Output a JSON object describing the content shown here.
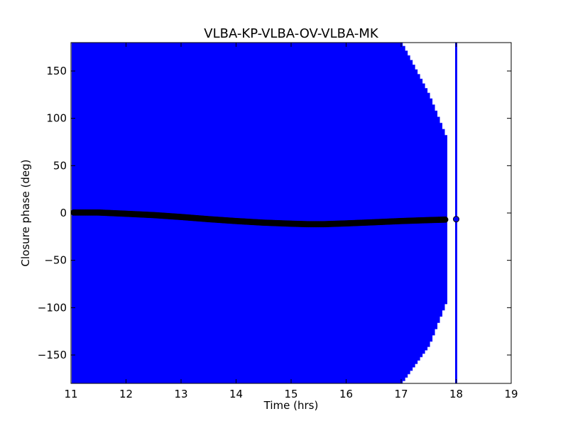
{
  "chart_data": {
    "type": "scatter",
    "title": "VLBA-KP-VLBA-OV-VLBA-MK",
    "xlabel": "Time (hrs)",
    "ylabel": "Closure phase (deg)",
    "xlim": [
      11,
      19
    ],
    "ylim": [
      -180,
      180
    ],
    "xticks": [
      11,
      12,
      13,
      14,
      15,
      16,
      17,
      18,
      19
    ],
    "yticks": [
      -150,
      -100,
      -50,
      0,
      50,
      100,
      150
    ],
    "grid": false,
    "legend": "none",
    "colors": {
      "errorbars": "#0000ff",
      "points": "#000000",
      "last_point": "#0000ff"
    },
    "series": [
      {
        "marker": "circle",
        "x": [
          11.05,
          11.5,
          12.0,
          12.5,
          13.0,
          13.5,
          14.0,
          14.5,
          15.0,
          15.3,
          15.6,
          16.0,
          16.5,
          17.0,
          17.5,
          17.8,
          18.0
        ],
        "y": [
          0.5,
          0.5,
          -0.8,
          -2.2,
          -4.2,
          -6.5,
          -8.5,
          -10.2,
          -11.3,
          -11.8,
          -11.8,
          -11.0,
          -9.8,
          -8.5,
          -7.5,
          -7.0,
          -6.5
        ],
        "error_upper_end": [
          180,
          180,
          180,
          180,
          180,
          180,
          180,
          180,
          180,
          180,
          180,
          180,
          180,
          180,
          125,
          82,
          180
        ],
        "error_lower_end": [
          -180,
          -180,
          -180,
          -180,
          -180,
          -180,
          -180,
          -180,
          -180,
          -180,
          -180,
          -180,
          -180,
          -180,
          -140,
          -96,
          -180
        ]
      }
    ]
  }
}
